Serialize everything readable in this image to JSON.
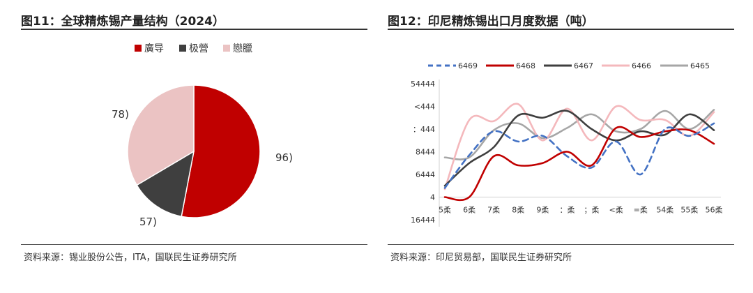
{
  "left": {
    "title": "图11：全球精炼锡产量结构（2024）",
    "source": "资料来源：锡业股份公告，ITA，国联民生证券研究所"
  },
  "right": {
    "title": "图12：印尼精炼锡出口月度数据（吨）",
    "source": "资料来源：印尼贸易部，国联民生证券研究所"
  },
  "chart_data": [
    {
      "type": "pie",
      "legend_position": "top",
      "slices": [
        {
          "name": "廣导",
          "value": 53,
          "label": "96)",
          "color": "#c00000"
        },
        {
          "name": "极營",
          "value": 13.5,
          "label": "57)",
          "color": "#3f3f3f"
        },
        {
          "name": "戀臘",
          "value": 33.5,
          "label": "78)",
          "color": "#ebc3c3"
        }
      ]
    },
    {
      "type": "line",
      "legend_position": "top",
      "grid": false,
      "categories": [
        "5柔",
        "6柔",
        "7柔",
        "8柔",
        "9柔",
        "：柔",
        "；柔",
        "<柔",
        "=柔",
        "54柔",
        "55柔",
        "56柔"
      ],
      "ytick_labels": [
        "16444",
        "4",
        "6444",
        "8444",
        "：444",
        "<444",
        "54444"
      ],
      "ylim": [
        -2000,
        10000
      ],
      "series": [
        {
          "name": "6469",
          "color": "#4472c4",
          "dash": true,
          "values": [
            800,
            3700,
            5800,
            4900,
            5400,
            3600,
            2600,
            4900,
            2000,
            6000,
            5400,
            6500
          ]
        },
        {
          "name": "6468",
          "color": "#c00000",
          "values": [
            0,
            0,
            3600,
            2800,
            3000,
            4000,
            2800,
            6100,
            5300,
            5800,
            5900,
            4700
          ]
        },
        {
          "name": "6467",
          "color": "#3f3f3f",
          "values": [
            1000,
            3000,
            4400,
            7200,
            7000,
            7600,
            6000,
            5000,
            5800,
            5500,
            7300,
            5900
          ]
        },
        {
          "name": "6466",
          "color": "#f4b8bc",
          "values": [
            700,
            6800,
            6700,
            8200,
            5000,
            7800,
            5000,
            8000,
            6800,
            6800,
            5400,
            7500
          ]
        },
        {
          "name": "6465",
          "color": "#a6a6a6",
          "values": [
            3500,
            3500,
            5900,
            6500,
            5200,
            6100,
            7300,
            5800,
            6000,
            7600,
            6000,
            7700
          ]
        }
      ]
    }
  ]
}
